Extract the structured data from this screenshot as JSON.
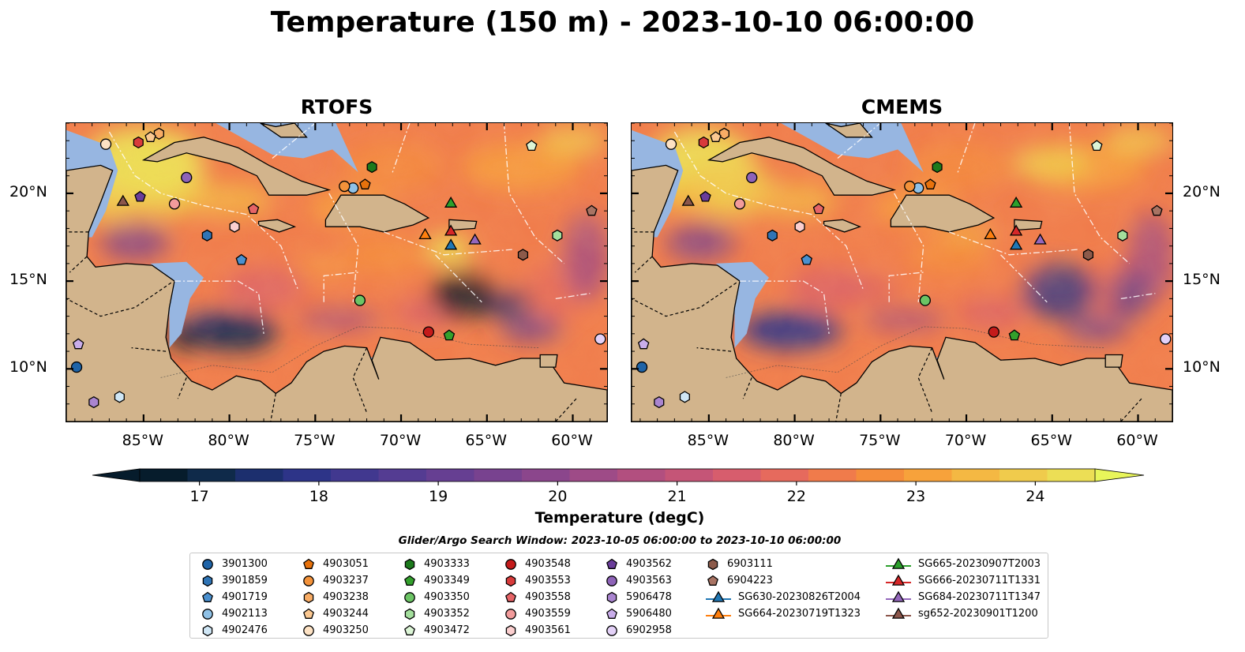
{
  "title": "Temperature (150 m) - 2023-10-10 06:00:00",
  "panels": [
    {
      "title": "RTOFS",
      "variant": "rtofs"
    },
    {
      "title": "CMEMS",
      "variant": "cmems"
    }
  ],
  "map_extent": {
    "lon": [
      -89.5,
      -58
    ],
    "lat": [
      7,
      24
    ]
  },
  "lon_ticks": [
    {
      "value": -85,
      "label": "85°W"
    },
    {
      "value": -80,
      "label": "80°W"
    },
    {
      "value": -75,
      "label": "75°W"
    },
    {
      "value": -70,
      "label": "70°W"
    },
    {
      "value": -65,
      "label": "65°W"
    },
    {
      "value": -60,
      "label": "60°W"
    }
  ],
  "lat_ticks": [
    {
      "value": 20,
      "label": "20°N"
    },
    {
      "value": 15,
      "label": "15°N"
    },
    {
      "value": 10,
      "label": "10°N"
    }
  ],
  "colorbar": {
    "label": "Temperature (degC)",
    "min": 16.5,
    "max": 24.5,
    "step": 0.5,
    "ticks": [
      {
        "value": 17,
        "label": "17"
      },
      {
        "value": 18,
        "label": "18"
      },
      {
        "value": 19,
        "label": "19"
      },
      {
        "value": 20,
        "label": "20"
      },
      {
        "value": 21,
        "label": "21"
      },
      {
        "value": 22,
        "label": "22"
      },
      {
        "value": 23,
        "label": "23"
      },
      {
        "value": 24,
        "label": "24"
      }
    ],
    "colors": [
      "#061c2c",
      "#0f2a4a",
      "#1c2f6e",
      "#2d3488",
      "#41388f",
      "#543c92",
      "#663f92",
      "#78428f",
      "#8b468c",
      "#9e4b87",
      "#b24f7f",
      "#c55577",
      "#d75d6d",
      "#e66a5d",
      "#f07b4b",
      "#f58d3b",
      "#f7a23b",
      "#f4b843",
      "#f0cb4c",
      "#ecde55"
    ],
    "extend_low": "#061c2c",
    "extend_high": "#e8f55a"
  },
  "legend": {
    "title": "Glider/Argo Search Window: 2023-10-05 06:00:00 to 2023-10-10 06:00:00",
    "columns": [
      [
        {
          "label": "3901300",
          "marker": "circle",
          "color": "#1f64a8"
        },
        {
          "label": "3901859",
          "marker": "hexagon",
          "color": "#2f74b5"
        },
        {
          "label": "4901719",
          "marker": "pentagon",
          "color": "#4a90cf"
        },
        {
          "label": "4902113",
          "marker": "circle",
          "color": "#8fc1e6"
        },
        {
          "label": "4902476",
          "marker": "hexagon",
          "color": "#cfe6f5"
        }
      ],
      [
        {
          "label": "4903051",
          "marker": "pentagon",
          "color": "#e8720c"
        },
        {
          "label": "4903237",
          "marker": "circle",
          "color": "#f3923a"
        },
        {
          "label": "4903238",
          "marker": "hexagon",
          "color": "#f8ac65"
        },
        {
          "label": "4903244",
          "marker": "pentagon",
          "color": "#fbc891"
        },
        {
          "label": "4903250",
          "marker": "circle",
          "color": "#fde2c4"
        }
      ],
      [
        {
          "label": "4903333",
          "marker": "hexagon",
          "color": "#1c7a1c"
        },
        {
          "label": "4903349",
          "marker": "pentagon",
          "color": "#33a02c"
        },
        {
          "label": "4903350",
          "marker": "circle",
          "color": "#6cc465"
        },
        {
          "label": "4903352",
          "marker": "hexagon",
          "color": "#a3de9c"
        },
        {
          "label": "4903472",
          "marker": "pentagon",
          "color": "#dcf5d6"
        }
      ],
      [
        {
          "label": "4903548",
          "marker": "circle",
          "color": "#c41b1b"
        },
        {
          "label": "4903553",
          "marker": "hexagon",
          "color": "#d83b3b"
        },
        {
          "label": "4903558",
          "marker": "pentagon",
          "color": "#e66467"
        },
        {
          "label": "4903559",
          "marker": "circle",
          "color": "#f29b9b"
        },
        {
          "label": "4903561",
          "marker": "hexagon",
          "color": "#fbcfcf"
        }
      ],
      [
        {
          "label": "4903562",
          "marker": "pentagon",
          "color": "#6a3d9a"
        },
        {
          "label": "4903563",
          "marker": "circle",
          "color": "#8e63b8"
        },
        {
          "label": "5906478",
          "marker": "hexagon",
          "color": "#aa85d0"
        },
        {
          "label": "5906480",
          "marker": "pentagon",
          "color": "#c9adea"
        },
        {
          "label": "6902958",
          "marker": "circle",
          "color": "#e3d1f7"
        }
      ],
      [
        {
          "label": "6903111",
          "marker": "hexagon",
          "color": "#8c5a4a"
        },
        {
          "label": "6904223",
          "marker": "pentagon",
          "color": "#a87363"
        },
        {
          "label": "SG630-20230826T2004",
          "marker": "triangle-line",
          "color": "#1f77b4"
        },
        {
          "label": "SG664-20230719T1323",
          "marker": "triangle-line",
          "color": "#ff7f0e"
        }
      ],
      [
        {
          "label": "SG665-20230907T2003",
          "marker": "triangle-line",
          "color": "#2ca02c"
        },
        {
          "label": "SG666-20230711T1331",
          "marker": "triangle-line",
          "color": "#d62728"
        },
        {
          "label": "SG684-20230711T1347",
          "marker": "triangle-line",
          "color": "#9467bd"
        },
        {
          "label": "sg652-20230901T1200",
          "marker": "triangle-line",
          "color": "#8c564b"
        }
      ]
    ]
  },
  "map_markers": [
    {
      "id": "3901300",
      "lon": -88.9,
      "lat": 10.1,
      "marker": "circle",
      "color": "#1f64a8"
    },
    {
      "id": "3901859",
      "lon": -81.3,
      "lat": 17.6,
      "marker": "hexagon",
      "color": "#2f74b5"
    },
    {
      "id": "4901719",
      "lon": -79.3,
      "lat": 16.2,
      "marker": "pentagon",
      "color": "#4a90cf"
    },
    {
      "id": "4902113",
      "lon": -72.8,
      "lat": 20.3,
      "marker": "circle",
      "color": "#8fc1e6"
    },
    {
      "id": "4902476",
      "lon": -86.4,
      "lat": 8.4,
      "marker": "hexagon",
      "color": "#cfe6f5"
    },
    {
      "id": "4903051",
      "lon": -72.1,
      "lat": 20.5,
      "marker": "pentagon",
      "color": "#e8720c"
    },
    {
      "id": "4903237",
      "lon": -73.3,
      "lat": 20.4,
      "marker": "circle",
      "color": "#f3923a"
    },
    {
      "id": "4903238",
      "lon": -84.1,
      "lat": 23.4,
      "marker": "hexagon",
      "color": "#f8ac65"
    },
    {
      "id": "4903244",
      "lon": -84.6,
      "lat": 23.2,
      "marker": "pentagon",
      "color": "#fbc891"
    },
    {
      "id": "4903250",
      "lon": -87.2,
      "lat": 22.8,
      "marker": "circle",
      "color": "#fde2c4"
    },
    {
      "id": "4903333",
      "lon": -71.7,
      "lat": 21.5,
      "marker": "hexagon",
      "color": "#1c7a1c"
    },
    {
      "id": "4903349",
      "lon": -67.2,
      "lat": 11.9,
      "marker": "pentagon",
      "color": "#33a02c"
    },
    {
      "id": "4903350",
      "lon": -72.4,
      "lat": 13.9,
      "marker": "circle",
      "color": "#6cc465"
    },
    {
      "id": "4903352",
      "lon": -60.9,
      "lat": 17.6,
      "marker": "hexagon",
      "color": "#a3de9c"
    },
    {
      "id": "4903472",
      "lon": -62.4,
      "lat": 22.7,
      "marker": "pentagon",
      "color": "#dcf5d6"
    },
    {
      "id": "4903548",
      "lon": -68.4,
      "lat": 12.1,
      "marker": "circle",
      "color": "#c41b1b"
    },
    {
      "id": "4903553",
      "lon": -85.3,
      "lat": 22.9,
      "marker": "hexagon",
      "color": "#d83b3b"
    },
    {
      "id": "4903558",
      "lon": -78.6,
      "lat": 19.1,
      "marker": "pentagon",
      "color": "#e66467"
    },
    {
      "id": "4903559",
      "lon": -83.2,
      "lat": 19.4,
      "marker": "circle",
      "color": "#f29b9b"
    },
    {
      "id": "4903561",
      "lon": -79.7,
      "lat": 18.1,
      "marker": "hexagon",
      "color": "#fbcfcf"
    },
    {
      "id": "4903562",
      "lon": -85.2,
      "lat": 19.8,
      "marker": "pentagon",
      "color": "#6a3d9a"
    },
    {
      "id": "4903563",
      "lon": -82.5,
      "lat": 20.9,
      "marker": "circle",
      "color": "#8e63b8"
    },
    {
      "id": "5906478",
      "lon": -87.9,
      "lat": 8.1,
      "marker": "hexagon",
      "color": "#aa85d0"
    },
    {
      "id": "5906480",
      "lon": -88.8,
      "lat": 11.4,
      "marker": "pentagon",
      "color": "#c9adea"
    },
    {
      "id": "6902958",
      "lon": -58.4,
      "lat": 11.7,
      "marker": "circle",
      "color": "#e3d1f7"
    },
    {
      "id": "6903111",
      "lon": -62.9,
      "lat": 16.5,
      "marker": "hexagon",
      "color": "#8c5a4a"
    },
    {
      "id": "6904223",
      "lon": -58.9,
      "lat": 19.0,
      "marker": "pentagon",
      "color": "#a87363"
    },
    {
      "id": "SG630-20230826T2004",
      "lon": -67.1,
      "lat": 17.0,
      "marker": "triangle",
      "color": "#1f77b4"
    },
    {
      "id": "SG664-20230719T1323",
      "lon": -68.6,
      "lat": 17.6,
      "marker": "triangle",
      "color": "#ff7f0e"
    },
    {
      "id": "SG665-20230907T2003",
      "lon": -67.1,
      "lat": 19.4,
      "marker": "triangle",
      "color": "#2ca02c"
    },
    {
      "id": "SG666-20230711T1331",
      "lon": -67.1,
      "lat": 17.8,
      "marker": "triangle",
      "color": "#d62728"
    },
    {
      "id": "SG684-20230711T1347",
      "lon": -65.7,
      "lat": 17.3,
      "marker": "triangle",
      "color": "#9467bd"
    },
    {
      "id": "sg652-20230901T1200",
      "lon": -86.2,
      "lat": 19.5,
      "marker": "triangle",
      "color": "#8c564b"
    }
  ],
  "colors": {
    "land": "#d2b48c",
    "shelf": "#97b6e1",
    "coastline": "#000000"
  }
}
